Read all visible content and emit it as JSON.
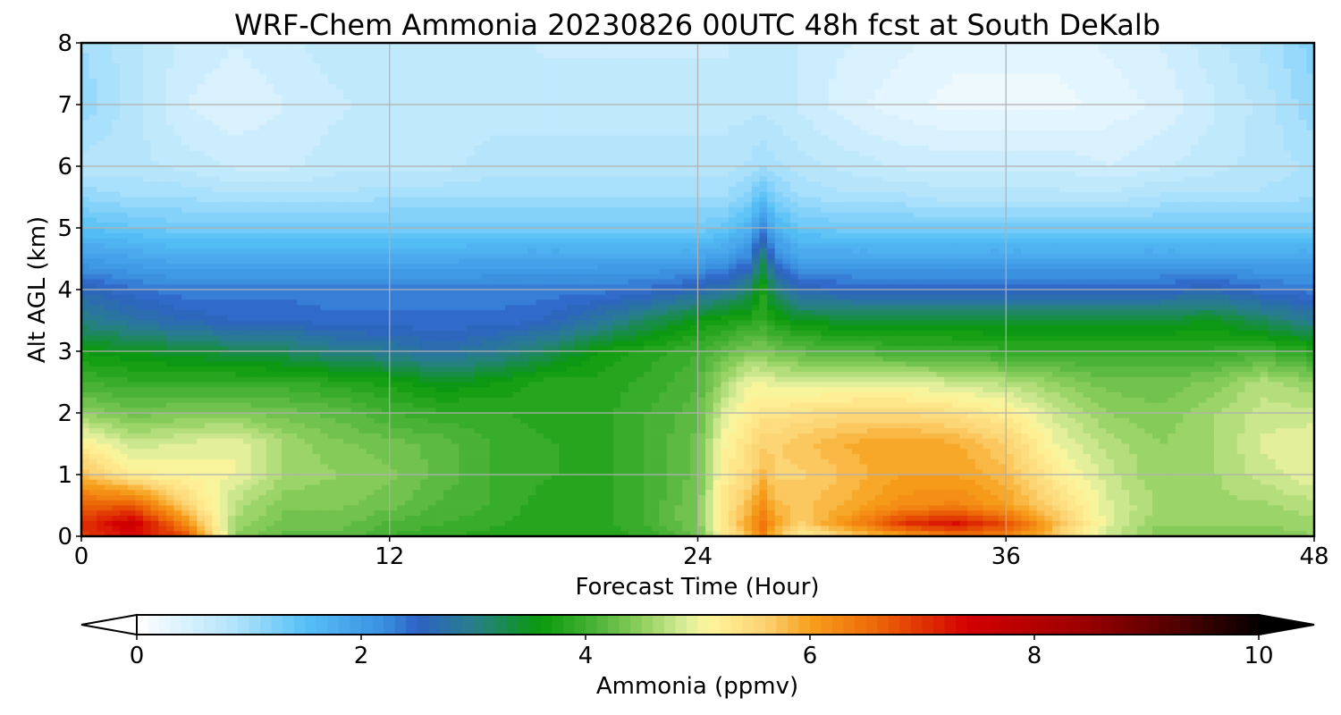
{
  "chart_data": {
    "type": "heatmap",
    "title": "WRF-Chem Ammonia  20230826 00UTC 48h fcst at South DeKalb",
    "xlabel": "Forecast Time (Hour)",
    "ylabel": "Alt AGL (km)",
    "xlim": [
      0,
      48
    ],
    "ylim": [
      0,
      8
    ],
    "x_ticks": [
      "0",
      "12",
      "24",
      "36",
      "48"
    ],
    "x_tick_values": [
      0,
      12,
      24,
      36,
      48
    ],
    "y_ticks": [
      "0",
      "1",
      "2",
      "3",
      "4",
      "5",
      "6",
      "7",
      "8"
    ],
    "y_tick_values": [
      0,
      1,
      2,
      3,
      4,
      5,
      6,
      7,
      8
    ],
    "grid": true,
    "x": [
      0,
      2,
      4,
      6,
      8,
      10,
      12,
      14,
      16,
      18,
      20,
      22,
      24,
      25,
      26,
      26.5,
      27,
      28,
      30,
      32,
      34,
      36,
      38,
      40,
      42,
      44,
      46,
      48
    ],
    "altitudes": [
      0,
      0.2,
      0.5,
      1,
      1.5,
      2,
      2.5,
      3,
      3.5,
      4,
      4.5,
      5,
      5.5,
      6,
      7,
      8
    ],
    "values": [
      [
        6.9,
        7.3,
        6.8,
        4.5,
        4.2,
        4.2,
        4.0,
        3.9,
        3.8,
        3.8,
        3.8,
        3.9,
        4.3,
        5.2,
        5.8,
        6.3,
        5.8,
        5.2,
        5.6,
        6.0,
        6.4,
        6.3,
        5.6,
        4.8,
        4.4,
        4.4,
        4.4,
        4.5
      ],
      [
        7.0,
        7.6,
        6.3,
        4.6,
        4.3,
        4.3,
        4.1,
        4.0,
        3.9,
        3.8,
        3.8,
        4.0,
        4.4,
        5.3,
        6.0,
        6.5,
        6.0,
        5.6,
        6.2,
        7.0,
        7.3,
        6.8,
        5.8,
        4.9,
        4.5,
        4.5,
        4.5,
        4.6
      ],
      [
        6.6,
        6.7,
        5.6,
        4.7,
        4.4,
        4.4,
        4.3,
        4.1,
        4.0,
        3.8,
        3.8,
        4.0,
        4.4,
        5.3,
        5.8,
        6.2,
        5.8,
        5.7,
        5.9,
        6.2,
        6.3,
        6.0,
        5.5,
        4.9,
        4.6,
        4.6,
        4.6,
        4.7
      ],
      [
        5.8,
        5.2,
        5.1,
        5.0,
        4.6,
        4.5,
        4.4,
        4.2,
        4.0,
        3.9,
        3.8,
        4.0,
        4.3,
        5.2,
        5.5,
        5.8,
        5.6,
        5.6,
        5.8,
        6.0,
        6.0,
        5.8,
        5.2,
        4.8,
        4.5,
        4.6,
        4.8,
        5.0
      ],
      [
        5.2,
        4.8,
        4.9,
        5.0,
        4.6,
        4.4,
        4.3,
        4.2,
        4.0,
        3.9,
        3.8,
        4.0,
        4.3,
        5.1,
        5.4,
        5.6,
        5.6,
        5.7,
        5.9,
        6.0,
        5.9,
        5.6,
        5.0,
        4.7,
        4.5,
        4.6,
        4.9,
        5.0
      ],
      [
        4.5,
        4.3,
        4.4,
        4.4,
        4.3,
        4.2,
        4.0,
        3.9,
        3.9,
        3.8,
        3.8,
        4.0,
        4.2,
        4.9,
        5.2,
        5.3,
        5.3,
        5.4,
        5.5,
        5.5,
        5.4,
        5.2,
        4.8,
        4.5,
        4.4,
        4.6,
        4.8,
        4.8
      ],
      [
        4.0,
        3.9,
        3.9,
        3.9,
        3.9,
        3.8,
        3.7,
        3.5,
        3.6,
        3.8,
        3.8,
        3.9,
        4.1,
        4.6,
        5.0,
        5.0,
        4.9,
        4.9,
        4.9,
        4.9,
        4.8,
        4.7,
        4.5,
        4.3,
        4.3,
        4.4,
        4.7,
        4.5
      ],
      [
        3.6,
        3.5,
        3.4,
        3.3,
        3.2,
        3.0,
        2.9,
        2.7,
        2.9,
        3.2,
        3.6,
        3.8,
        4.0,
        4.2,
        4.4,
        4.4,
        4.3,
        4.2,
        4.1,
        4.0,
        4.0,
        3.9,
        3.9,
        3.9,
        3.9,
        3.9,
        4.0,
        3.8
      ],
      [
        3.0,
        2.8,
        2.6,
        2.5,
        2.5,
        2.4,
        2.4,
        2.4,
        2.4,
        2.5,
        2.8,
        3.2,
        3.6,
        3.7,
        3.8,
        3.9,
        3.7,
        3.5,
        3.4,
        3.4,
        3.4,
        3.4,
        3.4,
        3.4,
        3.4,
        3.5,
        3.2,
        2.9
      ],
      [
        2.6,
        2.4,
        2.3,
        2.3,
        2.3,
        2.3,
        2.3,
        2.3,
        2.3,
        2.3,
        2.3,
        2.4,
        2.6,
        2.8,
        3.1,
        3.8,
        3.1,
        2.6,
        2.5,
        2.5,
        2.5,
        2.5,
        2.5,
        2.5,
        2.5,
        2.6,
        2.4,
        2.3
      ],
      [
        2.0,
        1.9,
        1.8,
        1.8,
        1.8,
        1.8,
        1.8,
        1.8,
        1.9,
        1.9,
        1.9,
        1.9,
        1.9,
        2.0,
        2.3,
        3.2,
        2.3,
        1.9,
        1.9,
        1.9,
        1.9,
        1.9,
        1.9,
        1.9,
        1.9,
        1.9,
        1.9,
        1.9
      ],
      [
        1.5,
        1.4,
        1.3,
        1.3,
        1.3,
        1.3,
        1.3,
        1.3,
        1.3,
        1.3,
        1.3,
        1.3,
        1.3,
        1.4,
        1.7,
        2.3,
        1.7,
        1.4,
        1.3,
        1.3,
        1.3,
        1.3,
        1.3,
        1.3,
        1.3,
        1.3,
        1.3,
        1.3
      ],
      [
        1.1,
        1.0,
        1.0,
        0.9,
        0.9,
        0.9,
        1.0,
        1.0,
        1.0,
        1.0,
        1.0,
        1.0,
        1.0,
        1.0,
        1.2,
        1.5,
        1.2,
        1.0,
        0.9,
        0.9,
        0.8,
        0.8,
        0.8,
        0.8,
        0.9,
        0.9,
        0.9,
        1.0
      ],
      [
        0.8,
        0.8,
        0.7,
        0.6,
        0.6,
        0.7,
        0.7,
        0.7,
        0.8,
        0.8,
        0.8,
        0.8,
        0.8,
        0.8,
        0.9,
        1.0,
        0.9,
        0.8,
        0.7,
        0.6,
        0.6,
        0.6,
        0.6,
        0.5,
        0.6,
        0.7,
        0.8,
        0.9
      ],
      [
        1.1,
        0.8,
        0.5,
        0.4,
        0.5,
        0.6,
        0.7,
        0.7,
        0.7,
        0.7,
        0.7,
        0.7,
        0.7,
        0.7,
        0.7,
        0.7,
        0.7,
        0.6,
        0.4,
        0.3,
        0.2,
        0.2,
        0.2,
        0.3,
        0.4,
        0.6,
        0.8,
        1.1
      ],
      [
        1.0,
        0.8,
        0.6,
        0.5,
        0.6,
        0.7,
        0.7,
        0.7,
        0.7,
        0.6,
        0.6,
        0.6,
        0.6,
        0.6,
        0.7,
        0.7,
        0.7,
        0.6,
        0.5,
        0.4,
        0.3,
        0.3,
        0.3,
        0.4,
        0.5,
        0.7,
        0.9,
        1.2
      ]
    ],
    "colorbar": {
      "label": "Ammonia  (ppmv)",
      "range": [
        0,
        10
      ],
      "ticks": [
        "0",
        "2",
        "4",
        "6",
        "8",
        "10"
      ],
      "tick_values": [
        0,
        2,
        4,
        6,
        8,
        10
      ],
      "extend": "both",
      "under_color": "#ffffff",
      "over_color": "#000000",
      "colormap": [
        {
          "v": 0.0,
          "c": "#ffffff"
        },
        {
          "v": 0.9,
          "c": "#aee2fb"
        },
        {
          "v": 1.5,
          "c": "#57c0f7"
        },
        {
          "v": 2.2,
          "c": "#3a8fe0"
        },
        {
          "v": 2.5,
          "c": "#2e62c4"
        },
        {
          "v": 3.0,
          "c": "#277e8a"
        },
        {
          "v": 3.6,
          "c": "#0a9a0a"
        },
        {
          "v": 4.1,
          "c": "#4eb43b"
        },
        {
          "v": 4.5,
          "c": "#8fcf5f"
        },
        {
          "v": 4.9,
          "c": "#dcee9a"
        },
        {
          "v": 5.1,
          "c": "#fff59d"
        },
        {
          "v": 5.6,
          "c": "#fcd272"
        },
        {
          "v": 6.0,
          "c": "#f7a01c"
        },
        {
          "v": 6.6,
          "c": "#ed6607"
        },
        {
          "v": 7.4,
          "c": "#d40000"
        },
        {
          "v": 8.4,
          "c": "#9e0000"
        },
        {
          "v": 9.3,
          "c": "#4d0000"
        },
        {
          "v": 10.0,
          "c": "#050000"
        }
      ]
    }
  }
}
